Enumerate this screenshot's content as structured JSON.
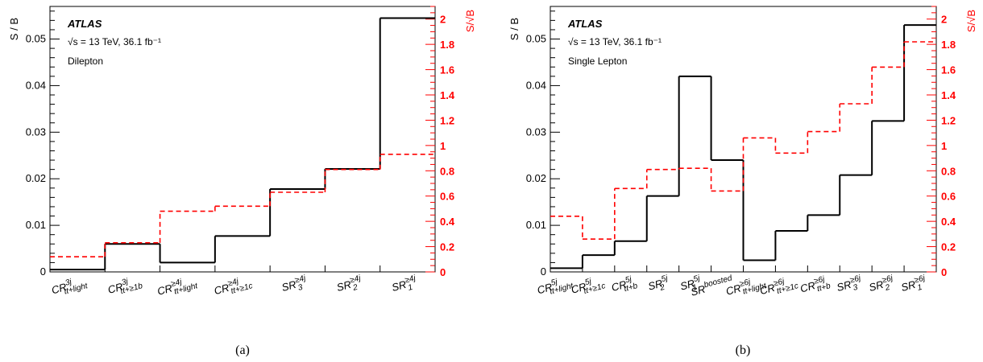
{
  "chart_data": [
    {
      "type": "line",
      "style": "step",
      "caption": "(a)",
      "annotations": [
        "ATLAS",
        "√s = 13 TeV, 36.1 fb⁻¹",
        "Dilepton"
      ],
      "ylabel_left": "S / B",
      "ylabel_right": "S/√B",
      "ylim_left": [
        0,
        0.057
      ],
      "ylim_right": [
        0,
        2.1
      ],
      "yticks_left": [
        "0",
        "0.01",
        "0.02",
        "0.03",
        "0.04",
        "0.05"
      ],
      "yticks_right": [
        "0",
        "0.2",
        "0.4",
        "0.6",
        "0.8",
        "1",
        "1.2",
        "1.4",
        "1.6",
        "1.8",
        "2"
      ],
      "categories": [
        {
          "base": "CR",
          "sup": "3j",
          "sub": "tt+light"
        },
        {
          "base": "CR",
          "sup": "3j",
          "sub": "tt+≥1b"
        },
        {
          "base": "CR",
          "sup": "≥4j",
          "sub": "tt+light"
        },
        {
          "base": "CR",
          "sup": "≥4j",
          "sub": "tt+≥1c"
        },
        {
          "base": "SR",
          "sup": "≥4j",
          "sub": "3"
        },
        {
          "base": "SR",
          "sup": "≥4j",
          "sub": "2"
        },
        {
          "base": "SR",
          "sup": "≥4j",
          "sub": "1"
        }
      ],
      "series": [
        {
          "values": [
            0.0005,
            0.006,
            0.002,
            0.0077,
            0.0178,
            0.0221,
            0.0545
          ]
        },
        {
          "values": [
            0.12,
            0.23,
            0.48,
            0.52,
            0.63,
            0.81,
            0.93
          ]
        }
      ]
    },
    {
      "type": "line",
      "style": "step",
      "caption": "(b)",
      "annotations": [
        "ATLAS",
        "√s = 13 TeV, 36.1 fb⁻¹",
        "Single Lepton"
      ],
      "ylabel_left": "S / B",
      "ylabel_right": "S/√B",
      "ylim_left": [
        0,
        0.057
      ],
      "ylim_right": [
        0,
        2.1
      ],
      "yticks_left": [
        "0",
        "0.01",
        "0.02",
        "0.03",
        "0.04",
        "0.05"
      ],
      "yticks_right": [
        "0",
        "0.2",
        "0.4",
        "0.6",
        "0.8",
        "1",
        "1.2",
        "1.4",
        "1.6",
        "1.8",
        "2"
      ],
      "categories": [
        {
          "base": "CR",
          "sup": "5j",
          "sub": "tt+light"
        },
        {
          "base": "CR",
          "sup": "5j",
          "sub": "tt+≥1c"
        },
        {
          "base": "CR",
          "sup": "5j",
          "sub": "tt+b"
        },
        {
          "base": "SR",
          "sup": "5j",
          "sub": "2"
        },
        {
          "base": "SR",
          "sup": "5j",
          "sub": "1"
        },
        {
          "base": "SR",
          "sup": "boosted",
          "sub": ""
        },
        {
          "base": "CR",
          "sup": "≥6j",
          "sub": "tt+light"
        },
        {
          "base": "CR",
          "sup": "≥6j",
          "sub": "tt+≥1c"
        },
        {
          "base": "CR",
          "sup": "≥6j",
          "sub": "tt+b"
        },
        {
          "base": "SR",
          "sup": "≥6j",
          "sub": "3"
        },
        {
          "base": "SR",
          "sup": "≥6j",
          "sub": "2"
        },
        {
          "base": "SR",
          "sup": "≥6j",
          "sub": "1"
        }
      ],
      "series": [
        {
          "values": [
            0.0008,
            0.0036,
            0.0066,
            0.0163,
            0.042,
            0.024,
            0.0025,
            0.0088,
            0.0122,
            0.0208,
            0.0324,
            0.053
          ]
        },
        {
          "values": [
            0.44,
            0.26,
            0.66,
            0.81,
            0.82,
            0.64,
            1.06,
            0.94,
            1.11,
            1.33,
            1.62,
            1.82
          ]
        }
      ]
    }
  ]
}
